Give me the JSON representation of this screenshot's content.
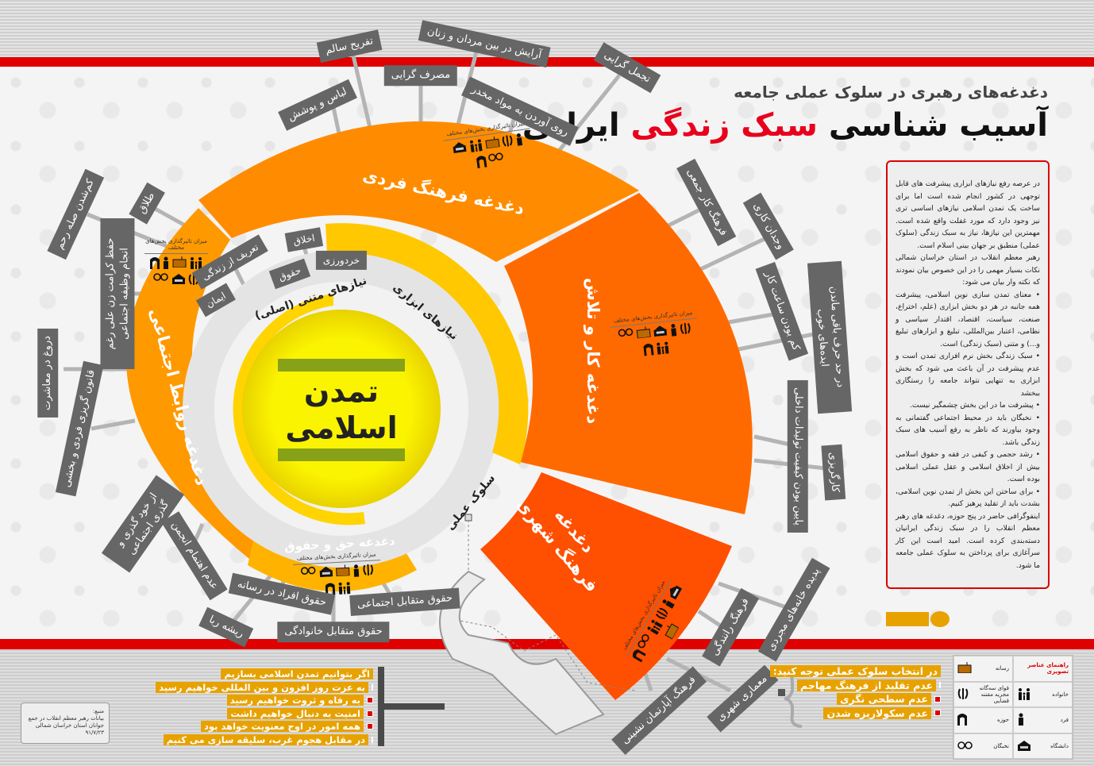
{
  "header": {
    "subtitle": "دغدغه‌های رهبری در سلوک عملی جامعه",
    "title_part1": "آسیب شناسی",
    "title_part2": "سبک زندگی",
    "title_part3": "ایرانی"
  },
  "colors": {
    "red_band": "#e00000",
    "fard": "#ff8c00",
    "kar": "#ff6a00",
    "shahri": "#ff4f00",
    "hagh": "#ffb300",
    "ravabet": "#ff9900",
    "center": "#f8f000",
    "label_bg": "#666666",
    "highlight": "#e8a200"
  },
  "center": {
    "line1": "تمدن",
    "line2": "اسلامی",
    "ring_main": "نیازهای متنی (اصلی)",
    "ring_tools": "نیازهای ابزاری",
    "ring_practice": "سلوک عملی"
  },
  "inner_labels": [
    "تعریف از زندگی",
    "اخلاق",
    "حقوق",
    "خردورزی",
    "ایمان"
  ],
  "influence_caption": "میزان تاثیرگذاری بخش‌های مختلف",
  "segments": {
    "fard": {
      "title": "دغدغه فرهنگ فردی",
      "icons": [
        "person-icon",
        "emblem-icon",
        "radio-icon",
        "family-icon",
        "university-icon",
        "glasses-icon",
        "seminary-icon"
      ],
      "labels": [
        "لباس و پوشش",
        "تفریح سالم",
        "مصرف گرایی",
        "آرایش در بین مردان و زنان",
        "روی آوردن به مواد مخدر",
        "تجمل گرایی"
      ]
    },
    "ravabet": {
      "title": "دغدغه روابط اجتماعی",
      "icons": [
        "family-icon",
        "radio-icon",
        "person-icon",
        "seminary-icon",
        "emblem-icon",
        "university-icon",
        "glasses-icon"
      ],
      "labels": [
        "طلاق",
        "کم‌شدن صله رحم",
        "حفظ کرامت زن علی رغم انجام وظیفه اجتماعی",
        "دروغ در معاشرت",
        "قانون گریزی فردی و بخشی",
        "از خود گذری و گذری اجتماعی",
        "عدم اهتمام انجمن"
      ]
    },
    "kar": {
      "title": "دغدغه کار و تلاش",
      "icons": [
        "emblem-icon",
        "person-icon",
        "university-icon",
        "radio-icon",
        "glasses-icon",
        "family-icon",
        "seminary-icon"
      ],
      "labels": [
        "فرهنگ کار جمعی",
        "وجدان کاری",
        "کم بودن ساعت کار",
        "در حد حرف باقی ماندن ایده‌های خوب",
        "پایین بودن کیفیت تولیدات داخلی",
        "کارگریزی"
      ]
    },
    "shahri": {
      "title_line1": "دغدغه",
      "title_line2": "فرهنگ شهری",
      "icons": [
        "university-icon",
        "person-icon",
        "emblem-icon",
        "family-icon",
        "glasses-icon",
        "seminary-icon",
        "radio-icon"
      ],
      "labels": [
        "پدیده خانه‌های مجردی",
        "فرهنگ رانندگی",
        "فرهنگ آپارتمان نشینی",
        "معماری شهری"
      ]
    },
    "hagh": {
      "title": "دغدغه حق و حقوق",
      "icons": [
        "emblem-icon",
        "person-icon",
        "radio-icon",
        "university-icon",
        "glasses-icon",
        "family-icon",
        "seminary-icon"
      ],
      "labels": [
        "حقوق افراد در رسانه",
        "ریشه ربا",
        "حقوق متقابل خانوادگی",
        "حقوق متقابل اجتماعی"
      ]
    }
  },
  "description": [
    "در عرصه رفع نیازهای ابزاری پیشرفت های قابل توجهی در کشور انجام شده است اما برای ساخت یک تمدن اسلامی نیازهای اساسی تری نیز وجود دارد که مورد غفلت واقع شده است. مهمترین این نیازها، نیاز به سبک زندگی (سلوک عملی) منطبق بر جهان بینی اسلام است.",
    "رهبر معظم انقلاب در استان خراسان شمالی نکات بسیار مهمی را در این خصوص بیان نمودند که نکته وار بیان می شود:",
    "• معنای تمدن سازی نوین اسلامی، پیشرفت همه جانبه در هر دو بخش ابزاری (علم، اختراع، صنعت، سیاست، اقتصاد، اقتدار سیاسی و نظامی، اعتبار بین‌المللی، تبلیغ و ابزارهای تبلیغ و...) و متنی (سبک زندگی) است.",
    "• سبک زندگی بخش نرم افزاری تمدن است و عدم پیشرفت در آن باعث می شود که بخش ابزاری به تنهایی نتواند جامعه را رستگاری ببخشد",
    "• پیشرفت ما در این بخش چشمگیر نیست.",
    "• نخبگان باید در محیط اجتماعی گفتمانی به وجود بیاورند که ناظر به رفع آسیب های سبک زندگی باشد.",
    "• رشد حجمی و کیفی در فقه و حقوق اسلامی بیش از اخلاق اسلامی و عقل عملی اسلامی بوده است.",
    "• برای ساختن این بخش از تمدن نوین اسلامی، بشدت باید از تقلید پرهیز کنیم.",
    "اینفوگرافی حاضر در پنج حوزه، دغدغه های رهبر معظم انقلاب را در سبک زندگی ایرانیان دسته‌بندی کرده است. امید است این کار سرآغازی برای پرداختن به سلوک عملی جامعه ما شود."
  ],
  "outcomes": {
    "heading": "اگر بتوانیم تمدن اسلامی بسازیم",
    "items": [
      "به عزت روز افزون و بین المللی خواهیم رسید",
      "به رفاه و ثروت خواهیم رسید",
      "امنیت به دنبال خواهیم داشت",
      "همه امور در اوج معنویت خواهد بود",
      "در مقابل هجوم غرب، سلیقه سازی می کنیم"
    ]
  },
  "cautions": {
    "heading": "در انتخاب سلوک عملی توجه کنید:",
    "items": [
      "عدم تقلید از فرهنگ مهاجم",
      "عدم سطحی نگری",
      "عدم سکولاریزه شدن"
    ]
  },
  "legend": {
    "title": "راهنمای عناصر تصویری",
    "items": [
      {
        "label": "رسانه",
        "icon": "radio-icon"
      },
      {
        "label": "خانواده",
        "icon": "family-icon"
      },
      {
        "label": "قوای سه‌گانه مجریه مقننه قضایی",
        "icon": "emblem-icon"
      },
      {
        "label": "فرد",
        "icon": "person-icon"
      },
      {
        "label": "حوزه",
        "icon": "seminary-icon"
      },
      {
        "label": "دانشگاه",
        "icon": "university-icon"
      },
      {
        "label": "نخبگان",
        "icon": "glasses-icon"
      }
    ]
  },
  "source": {
    "label": "منبع:",
    "text": "بیانات رهبر معظم انقلاب در جمع جوانان استان خراسان شمالی",
    "date": "۹۱/۷/۲۳"
  }
}
